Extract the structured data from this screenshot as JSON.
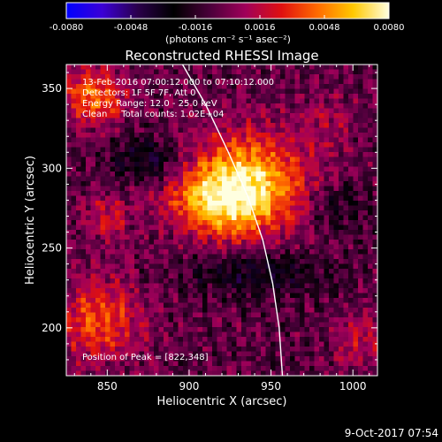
{
  "chart_data": {
    "type": "heatmap",
    "title": "Reconstructed RHESSI Image",
    "xlabel": "Heliocentric X (arcsec)",
    "ylabel": "Heliocentric Y (arcsec)",
    "xlim": [
      825,
      1015
    ],
    "ylim": [
      170,
      365
    ],
    "xticks": [
      850,
      900,
      950,
      1000
    ],
    "yticks": [
      200,
      250,
      300,
      350
    ],
    "colorbar": {
      "ticks": [
        "-0.0080",
        "-0.0048",
        "-0.0016",
        "0.0016",
        "0.0048",
        "0.0080"
      ],
      "range": [
        -0.008,
        0.008
      ],
      "unit_label": "(photons cm⁻² s⁻¹ asec⁻²)",
      "colormap": [
        "#0000ff",
        "#3b00d6",
        "#2a004a",
        "#000000",
        "#4a003a",
        "#a0005a",
        "#e01010",
        "#ff6a00",
        "#ffc800",
        "#ffffe0"
      ]
    },
    "annotations": {
      "time_range": "13-Feb-2016 07:00:12.000 to 07:10:12.000",
      "detectors": "Detectors: 1F 5F 7F, Att 0",
      "energy": "Energy Range: 12.0 - 25.0 keV",
      "clean": "Clean     Total counts: 1.02E+04",
      "peak": "Position of Peak = [822,348]"
    },
    "sources": [
      {
        "x": 935,
        "y": 290,
        "sx": 26,
        "sy": 22,
        "amp": 0.0072
      },
      {
        "x": 915,
        "y": 278,
        "sx": 20,
        "sy": 14,
        "amp": 0.004
      },
      {
        "x": 842,
        "y": 345,
        "sx": 14,
        "sy": 12,
        "amp": 0.005
      },
      {
        "x": 845,
        "y": 205,
        "sx": 18,
        "sy": 18,
        "amp": 0.0042
      },
      {
        "x": 850,
        "y": 270,
        "sx": 10,
        "sy": 10,
        "amp": 0.0025
      },
      {
        "x": 1005,
        "y": 190,
        "sx": 12,
        "sy": 12,
        "amp": 0.0022
      },
      {
        "x": 985,
        "y": 330,
        "sx": 12,
        "sy": 12,
        "amp": 0.0015
      },
      {
        "x": 875,
        "y": 305,
        "sx": 16,
        "sy": 10,
        "amp": -0.003
      },
      {
        "x": 940,
        "y": 235,
        "sx": 30,
        "sy": 10,
        "amp": -0.0028
      },
      {
        "x": 990,
        "y": 275,
        "sx": 14,
        "sy": 12,
        "amp": -0.002
      }
    ],
    "limb_curve": [
      [
        896,
        365
      ],
      [
        910,
        340
      ],
      [
        924,
        310
      ],
      [
        936,
        282
      ],
      [
        945,
        255
      ],
      [
        951,
        228
      ],
      [
        955,
        200
      ],
      [
        957,
        170
      ]
    ],
    "limb_color": "#ffffff"
  },
  "footer": {
    "date": "9-Oct-2017 07:54"
  }
}
